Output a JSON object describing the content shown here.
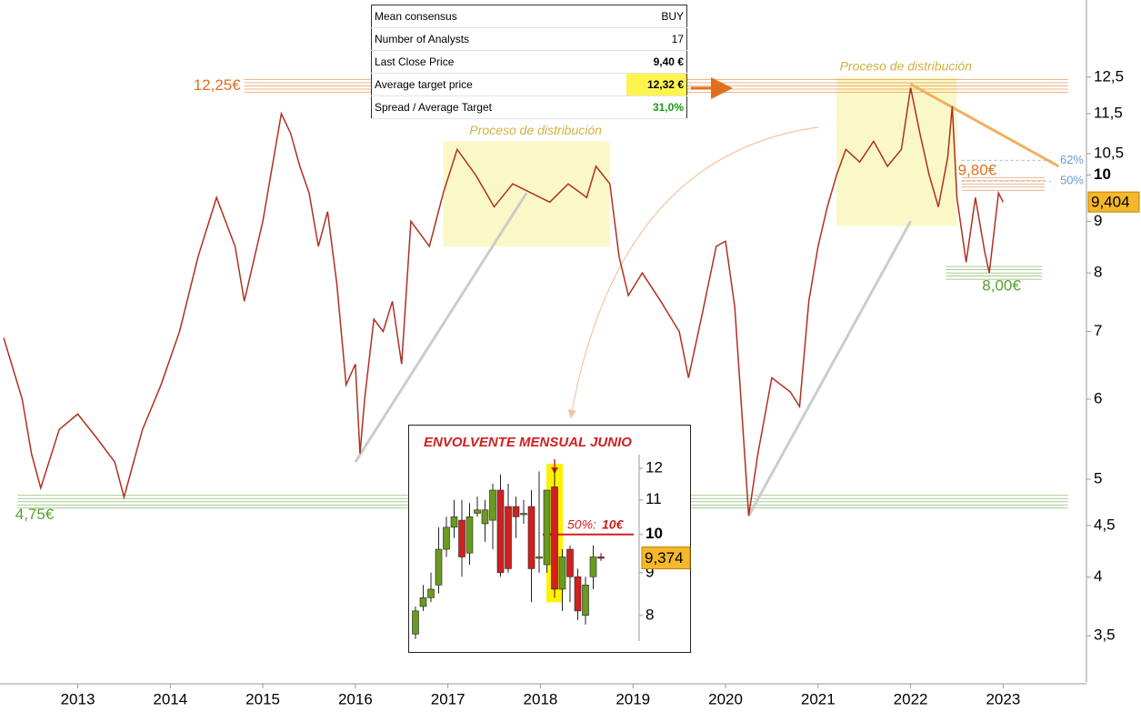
{
  "table": {
    "rows": [
      [
        "Mean consensus",
        "BUY"
      ],
      [
        "Number of Analysts",
        "17"
      ],
      [
        "Last Close Price",
        "9,40 €"
      ],
      [
        "Average target price",
        "12,32 €"
      ],
      [
        "Spread / Average Target",
        "31,0%"
      ]
    ]
  },
  "chart_data": [
    {
      "type": "line",
      "log_scale": true,
      "color": "#b03020",
      "x": [
        2012.2,
        2012.4,
        2012.5,
        2012.6,
        2012.8,
        2013.0,
        2013.2,
        2013.4,
        2013.5,
        2013.7,
        2013.9,
        2014.1,
        2014.3,
        2014.5,
        2014.7,
        2014.8,
        2015.0,
        2015.2,
        2015.3,
        2015.4,
        2015.5,
        2015.6,
        2015.7,
        2015.8,
        2015.9,
        2016.0,
        2016.05,
        2016.1,
        2016.2,
        2016.3,
        2016.4,
        2016.5,
        2016.6,
        2016.8,
        2016.95,
        2017.1,
        2017.3,
        2017.5,
        2017.7,
        2017.9,
        2018.1,
        2018.3,
        2018.5,
        2018.6,
        2018.75,
        2018.85,
        2018.95,
        2019.1,
        2019.3,
        2019.5,
        2019.6,
        2019.75,
        2019.9,
        2020.0,
        2020.1,
        2020.2,
        2020.25,
        2020.35,
        2020.5,
        2020.7,
        2020.8,
        2020.9,
        2021.0,
        2021.1,
        2021.2,
        2021.3,
        2021.45,
        2021.6,
        2021.75,
        2021.9,
        2022.0,
        2022.1,
        2022.2,
        2022.3,
        2022.4,
        2022.45,
        2022.5,
        2022.6,
        2022.7,
        2022.8,
        2022.85,
        2022.95,
        2023.0
      ],
      "values": [
        6.9,
        6.0,
        5.3,
        4.9,
        5.6,
        5.8,
        5.5,
        5.2,
        4.8,
        5.6,
        6.2,
        7.0,
        8.3,
        9.5,
        8.5,
        7.5,
        9.0,
        11.5,
        11.0,
        10.2,
        9.6,
        8.5,
        9.2,
        7.8,
        6.2,
        6.5,
        5.3,
        6.0,
        7.2,
        7.0,
        7.5,
        6.5,
        9.0,
        8.5,
        9.6,
        10.6,
        10.0,
        9.3,
        9.8,
        9.6,
        9.4,
        9.8,
        9.5,
        10.2,
        9.8,
        8.3,
        7.6,
        8.0,
        7.5,
        7.0,
        6.3,
        7.3,
        8.5,
        8.6,
        7.4,
        5.4,
        4.6,
        5.3,
        6.3,
        6.1,
        5.9,
        7.5,
        8.5,
        9.3,
        10.0,
        10.6,
        10.3,
        10.8,
        10.2,
        10.6,
        12.2,
        11.0,
        10.0,
        9.3,
        10.4,
        11.7,
        9.5,
        8.2,
        9.5,
        8.4,
        8.0,
        9.6,
        9.4
      ],
      "xlim": [
        2012.16,
        2023.9
      ],
      "xticks": [
        2013,
        2014,
        2015,
        2016,
        2017,
        2018,
        2019,
        2020,
        2021,
        2022,
        2023
      ],
      "ylim": [
        3.15,
        14.9
      ],
      "yticks": [
        {
          "value": 3.5,
          "label": "3,5"
        },
        4,
        {
          "value": 4.5,
          "label": "4,5"
        },
        5,
        6,
        7,
        8,
        9,
        10,
        {
          "value": 10.5,
          "label": "10,5"
        },
        {
          "value": 11.5,
          "label": "11,5"
        },
        {
          "value": 12.5,
          "label": "12,5"
        }
      ],
      "highlight_tick": 10,
      "last_price": {
        "value": 9.404,
        "label": "9,404"
      },
      "levels": [
        {
          "value": 12.25,
          "label": "12,25€",
          "color": "#e07020",
          "xrange": [
            2014.8,
            2023.7
          ]
        },
        {
          "value": 4.75,
          "label": "4,75€",
          "color": "#5aa02c",
          "xrange": [
            2012.35,
            2023.7
          ]
        },
        {
          "value": 9.8,
          "label": "9,80€",
          "color": "#e07020",
          "xrange": [
            2022.55,
            2023.45
          ]
        },
        {
          "value": 8.0,
          "label": "8,00€",
          "color": "#5aa02c",
          "xrange": [
            2022.38,
            2023.42
          ]
        }
      ],
      "fibs": [
        {
          "value": 10.34,
          "label": "62%"
        },
        {
          "value": 9.86,
          "label": "50%"
        }
      ],
      "zones": [
        {
          "label": "Proceso de distribución",
          "xrange": [
            2016.95,
            2018.75
          ],
          "yrange": [
            8.5,
            10.8
          ]
        },
        {
          "label": "Proceso de distribución",
          "xrange": [
            2021.2,
            2022.5
          ],
          "yrange": [
            8.9,
            12.5
          ]
        }
      ],
      "trendlines": [
        {
          "x": [
            2016.0,
            2017.85
          ],
          "y": [
            5.2,
            9.6
          ],
          "color": "#cccccc"
        },
        {
          "x": [
            2020.25,
            2022.0
          ],
          "y": [
            4.6,
            9.0
          ],
          "color": "#cccccc"
        },
        {
          "x": [
            2022.0,
            2023.6
          ],
          "y": [
            12.3,
            10.2
          ],
          "color": "#f0b060"
        }
      ]
    },
    {
      "type": "candlestick",
      "log_scale": true,
      "title": "ENVOLVENTE MENSUAL JUNIO",
      "open": [
        7.6,
        8.2,
        8.4,
        8.7,
        9.6,
        10.2,
        10.4,
        9.5,
        10.6,
        10.3,
        10.4,
        11.3,
        10.8,
        10.8,
        10.6,
        10.8,
        9.4,
        9.2,
        11.4,
        8.6,
        9.6,
        8.9,
        8.0,
        8.9,
        9.4
      ],
      "high": [
        8.2,
        8.7,
        9.0,
        10.2,
        10.5,
        11.0,
        11.0,
        10.9,
        11.1,
        11.0,
        11.5,
        11.8,
        11.5,
        11.1,
        11.0,
        11.3,
        11.9,
        11.3,
        12.0,
        9.6,
        9.7,
        9.1,
        8.9,
        9.7,
        9.5
      ],
      "low": [
        7.5,
        8.1,
        8.3,
        8.5,
        9.4,
        9.9,
        8.9,
        9.2,
        10.5,
        9.8,
        9.6,
        8.9,
        9.0,
        9.9,
        10.3,
        8.3,
        9.0,
        9.0,
        8.4,
        8.1,
        8.3,
        7.9,
        7.8,
        8.6,
        9.3
      ],
      "close": [
        8.1,
        8.4,
        8.6,
        9.6,
        10.2,
        10.5,
        9.4,
        10.5,
        10.7,
        10.7,
        11.3,
        9.0,
        9.1,
        10.5,
        10.6,
        9.1,
        9.4,
        11.3,
        8.6,
        9.4,
        8.9,
        8.1,
        8.7,
        9.4,
        9.37
      ],
      "up_color": "#6a9a1f",
      "down_color": "#d02020",
      "highlight_index": 18,
      "ylim": [
        7.27,
        13.1
      ],
      "yticks": [
        8,
        9,
        10,
        11,
        12
      ],
      "highlight_tick": 10,
      "level": {
        "value": 10,
        "label": "50%:",
        "value_label": "10€"
      },
      "last_price": {
        "value": 9.374,
        "label": "9,374"
      }
    }
  ]
}
